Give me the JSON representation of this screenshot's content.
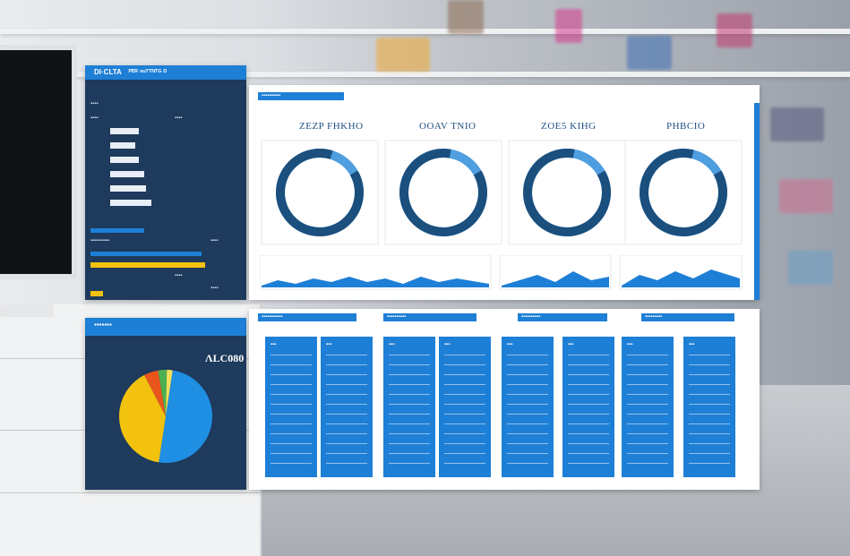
{
  "scene": {
    "description_colors": {
      "accent": "#1e7fd6",
      "navy": "#1e3a5c",
      "ring_dark": "#1a4f7e",
      "ring_light": "#4f9ee0",
      "pie_yellow": "#f2c20f",
      "pie_orange": "#e8561c",
      "pie_green": "#4caf50",
      "pie_blue": "#1e8fe3"
    }
  },
  "top_left_panel": {
    "header": "DI·CLTA ⠀ᴾᴱᴿ ᵒᵘᵀᵀᴺᵀᴳ ᴰ",
    "row_labels": [
      "▪▪▪▪",
      "▪▪▪▪",
      "▪▪▪▪",
      "▪▪▪▪",
      "▪▪▪▪",
      "▪▪▪▪"
    ],
    "section_label": "▪▪▪▪▪▪▪▪▪▪"
  },
  "dashboard": {
    "header_tab": "▪▪▪▪▪▪▪▪▪▪",
    "kpis": [
      {
        "title": "ZEZP FHKHO",
        "share": 0.88
      },
      {
        "title": "OOAV TNIO",
        "share": 0.86
      },
      {
        "title": "ZOE5 KIHG",
        "share": 0.86
      },
      {
        "title": "PHBCIO",
        "share": 0.87
      }
    ],
    "section_tabs": [
      "▪▪▪▪▪▪▪▪▪▪▪",
      "▪▪▪▪▪▪▪▪▪▪",
      "▪▪▪▪▪▪▪▪▪▪",
      "▪▪▪▪▪▪▪▪▪"
    ]
  },
  "pie_panel": {
    "header": "▪▪▪▪▪▪▪",
    "value": "ɅLC080",
    "chart_data": {
      "type": "pie",
      "slices": [
        {
          "value": 50,
          "color": "#1e8fe3"
        },
        {
          "value": 40,
          "color": "#f2c20f"
        },
        {
          "value": 5,
          "color": "#e8561c"
        },
        {
          "value": 3,
          "color": "#4caf50"
        },
        {
          "value": 2,
          "color": "#f5e05a"
        }
      ]
    }
  },
  "columns": [
    {
      "head": "▪▪▪"
    },
    {
      "head": "▪▪▪"
    },
    {
      "head": "▪▪▪"
    },
    {
      "head": "▪▪▪"
    },
    {
      "head": "▪▪▪"
    },
    {
      "head": "▪▪▪"
    },
    {
      "head": "▪▪▪"
    },
    {
      "head": "▪▪▪"
    }
  ]
}
